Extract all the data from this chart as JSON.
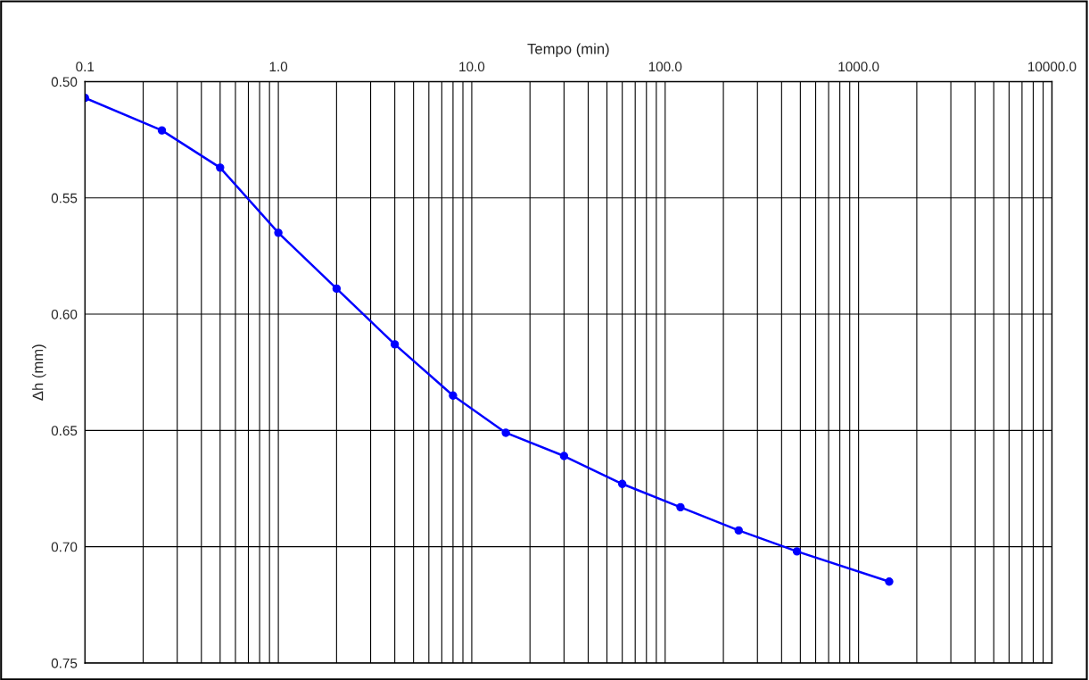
{
  "chart_data": {
    "type": "line",
    "xlabel": "Tempo (min)",
    "ylabel": "Δh (mm)",
    "log": "x",
    "grid": true,
    "marker": "circle",
    "line_style": "solid",
    "x": [
      0.1,
      0.25,
      0.5,
      1,
      2,
      4,
      8,
      15,
      30,
      60,
      120,
      240,
      480,
      1440
    ],
    "series": [
      {
        "color": "#0000ff",
        "values": [
          0.507,
          0.521,
          0.537,
          0.565,
          0.589,
          0.613,
          0.635,
          0.651,
          0.661,
          0.673,
          0.683,
          0.693,
          0.702,
          0.715
        ]
      }
    ],
    "xlim": [
      0.1,
      10000
    ],
    "ylim": [
      0.75,
      0.5
    ],
    "xticks": [
      {
        "value": 0.1,
        "label": "0.1"
      },
      {
        "value": 0.2,
        "label": null
      },
      {
        "value": 0.3,
        "label": null
      },
      {
        "value": 0.4,
        "label": null
      },
      {
        "value": 0.5,
        "label": null
      },
      {
        "value": 0.6,
        "label": null
      },
      {
        "value": 0.7,
        "label": null
      },
      {
        "value": 0.8,
        "label": null
      },
      {
        "value": 0.9,
        "label": null
      },
      {
        "value": 1,
        "label": "1.0"
      },
      {
        "value": 2,
        "label": null
      },
      {
        "value": 3,
        "label": null
      },
      {
        "value": 4,
        "label": null
      },
      {
        "value": 5,
        "label": null
      },
      {
        "value": 6,
        "label": null
      },
      {
        "value": 7,
        "label": null
      },
      {
        "value": 8,
        "label": null
      },
      {
        "value": 9,
        "label": null
      },
      {
        "value": 10,
        "label": "10.0"
      },
      {
        "value": 20,
        "label": null
      },
      {
        "value": 30,
        "label": null
      },
      {
        "value": 40,
        "label": null
      },
      {
        "value": 50,
        "label": null
      },
      {
        "value": 60,
        "label": null
      },
      {
        "value": 70,
        "label": null
      },
      {
        "value": 80,
        "label": null
      },
      {
        "value": 90,
        "label": null
      },
      {
        "value": 100,
        "label": "100.0"
      },
      {
        "value": 200,
        "label": null
      },
      {
        "value": 300,
        "label": null
      },
      {
        "value": 400,
        "label": null
      },
      {
        "value": 500,
        "label": null
      },
      {
        "value": 600,
        "label": null
      },
      {
        "value": 700,
        "label": null
      },
      {
        "value": 800,
        "label": null
      },
      {
        "value": 900,
        "label": null
      },
      {
        "value": 1000,
        "label": "1000.0"
      },
      {
        "value": 2000,
        "label": null
      },
      {
        "value": 3000,
        "label": null
      },
      {
        "value": 4000,
        "label": null
      },
      {
        "value": 5000,
        "label": null
      },
      {
        "value": 6000,
        "label": null
      },
      {
        "value": 7000,
        "label": null
      },
      {
        "value": 8000,
        "label": null
      },
      {
        "value": 9000,
        "label": null
      },
      {
        "value": 10000,
        "label": "10000.0"
      }
    ],
    "yticks": [
      {
        "value": 0.5,
        "label": "0.50"
      },
      {
        "value": 0.55,
        "label": "0.55"
      },
      {
        "value": 0.6,
        "label": "0.60"
      },
      {
        "value": 0.65,
        "label": "0.65"
      },
      {
        "value": 0.7,
        "label": "0.70"
      },
      {
        "value": 0.75,
        "label": "0.75"
      }
    ]
  }
}
